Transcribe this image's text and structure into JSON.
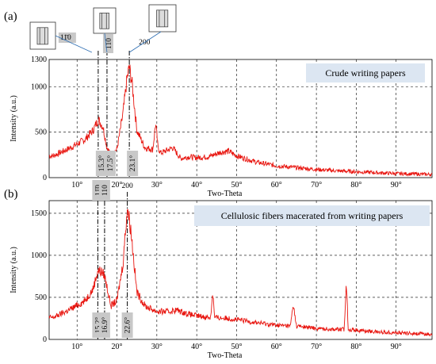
{
  "chart_data": [
    {
      "panel_label": "(a)",
      "type": "line",
      "title": "Crude writing papers",
      "xlabel": "Two-Theta",
      "ylabel": "Intensity (a.u.)",
      "xlim": [
        3,
        99
      ],
      "ylim": [
        0,
        1300
      ],
      "x_ticks": [
        10,
        20,
        30,
        40,
        50,
        60,
        70,
        80,
        90
      ],
      "x_tick_labels": [
        "10°",
        "20°",
        "30°",
        "40°",
        "50°",
        "60°",
        "70°",
        "80°",
        "90°"
      ],
      "y_ticks": [
        0,
        500,
        1000,
        1300
      ],
      "y_tick_labels": [
        "0",
        "500",
        "1000",
        "1300"
      ],
      "grid": true,
      "line_color": "#e8150f",
      "series": [
        {
          "x": [
            4,
            8,
            12,
            14,
            15.3,
            16.5,
            17.5,
            18.5,
            20,
            21.5,
            22.5,
            23.1,
            23.8,
            25,
            27,
            29,
            29.7,
            30.3,
            31,
            34,
            36,
            38,
            40,
            43,
            46,
            48,
            50,
            55,
            60,
            65,
            70,
            75,
            80,
            85,
            90,
            95,
            99
          ],
          "y": [
            240,
            320,
            420,
            520,
            640,
            560,
            330,
            250,
            310,
            700,
            1080,
            1220,
            1030,
            520,
            330,
            310,
            600,
            330,
            270,
            330,
            210,
            230,
            220,
            230,
            280,
            290,
            240,
            170,
            130,
            110,
            90,
            75,
            65,
            55,
            45,
            40,
            35
          ]
        }
      ],
      "peak_markers": [
        {
          "x": 15.3,
          "label": "15.3°"
        },
        {
          "x": 17.5,
          "label": "17.5°"
        },
        {
          "x": 23.1,
          "label": "23.1°"
        }
      ],
      "plane_labels": [
        {
          "x": 15.3,
          "label": "11̄0"
        },
        {
          "x": 17.5,
          "label": "110"
        },
        {
          "x": 23.1,
          "label": "200"
        }
      ]
    },
    {
      "panel_label": "(b)",
      "type": "line",
      "title": "Cellulosic fibers macerated from writing papers",
      "xlabel": "Two-Theta",
      "ylabel": "Intensity (a.u.)",
      "xlim": [
        3,
        99
      ],
      "ylim": [
        0,
        1650
      ],
      "x_ticks": [
        10,
        20,
        30,
        40,
        50,
        60,
        70,
        80,
        90
      ],
      "x_tick_labels": [
        "10°",
        "20°",
        "30°",
        "40°",
        "50°",
        "60°",
        "70°",
        "80°",
        "90°"
      ],
      "y_ticks": [
        0,
        500,
        1000,
        1500
      ],
      "y_tick_labels": [
        "0",
        "500",
        "1000",
        "1500"
      ],
      "grid": true,
      "line_color": "#e8150f",
      "series": [
        {
          "x": [
            4,
            8,
            12,
            14,
            15.2,
            16.2,
            16.9,
            18.5,
            20,
            21.5,
            22.6,
            23.5,
            25,
            27,
            30,
            33,
            35,
            38,
            40,
            43.5,
            44,
            44.5,
            48,
            55,
            60,
            63.5,
            64.2,
            65,
            70,
            75,
            77,
            77.5,
            78,
            80,
            85,
            90,
            95,
            99
          ],
          "y": [
            260,
            350,
            460,
            600,
            820,
            800,
            760,
            400,
            460,
            900,
            1580,
            1300,
            560,
            400,
            330,
            330,
            350,
            300,
            280,
            260,
            570,
            260,
            250,
            200,
            170,
            160,
            420,
            160,
            130,
            120,
            120,
            700,
            120,
            110,
            90,
            80,
            70,
            60
          ]
        }
      ],
      "peak_markers": [
        {
          "x": 15.2,
          "label": "15.2°"
        },
        {
          "x": 16.9,
          "label": "16.9°"
        },
        {
          "x": 22.6,
          "label": "22.6°"
        }
      ],
      "plane_labels": [
        {
          "x": 15.2,
          "label": "11̄0"
        },
        {
          "x": 16.9,
          "label": "110"
        },
        {
          "x": 22.6,
          "label": "200"
        }
      ]
    }
  ]
}
